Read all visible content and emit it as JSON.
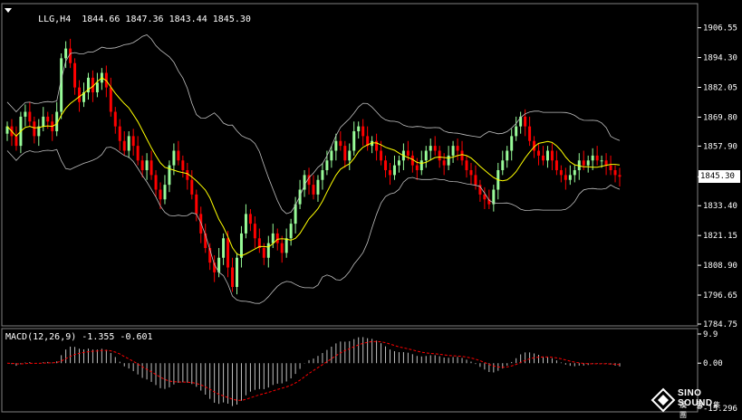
{
  "header": {
    "symbol": "LLG,H4",
    "ohlc": "1844.66 1847.36 1843.44 1845.30",
    "macd_title": "MACD(12,26,9) -1.355 -0.601"
  },
  "price_tag": "1845.30",
  "logo": {
    "name": "SINO SOUND",
    "chinese": "漢 聲 集 團",
    "icon": "diamond-logo-icon"
  },
  "colors": {
    "bull": "#98fb98",
    "bear": "#ff0000",
    "ma": "#ffff00",
    "bands": "#c0c0c0",
    "macd_hist": "#c0c0c0",
    "macd_signal": "#ff0000",
    "grid": "#808080",
    "bg": "#000000"
  },
  "chart_data": [
    {
      "type": "candlestick",
      "title": "LLG,H4",
      "ylim": [
        1784.75,
        1912.0
      ],
      "y_ticks": [
        "1906.55",
        "1894.30",
        "1882.05",
        "1869.80",
        "1857.90",
        "1845.30",
        "1833.40",
        "1821.15",
        "1808.90",
        "1796.65",
        "1784.75"
      ],
      "close": [
        1866,
        1862,
        1858,
        1870,
        1872,
        1868,
        1862,
        1866,
        1870,
        1868,
        1864,
        1872,
        1894,
        1898,
        1892,
        1882,
        1876,
        1880,
        1886,
        1880,
        1884,
        1888,
        1882,
        1872,
        1866,
        1860,
        1856,
        1862,
        1858,
        1852,
        1848,
        1852,
        1846,
        1840,
        1836,
        1842,
        1850,
        1856,
        1852,
        1848,
        1844,
        1838,
        1830,
        1822,
        1816,
        1810,
        1806,
        1812,
        1820,
        1808,
        1800,
        1812,
        1822,
        1830,
        1826,
        1820,
        1816,
        1812,
        1818,
        1822,
        1818,
        1814,
        1820,
        1826,
        1834,
        1840,
        1846,
        1842,
        1838,
        1844,
        1848,
        1852,
        1856,
        1860,
        1858,
        1852,
        1856,
        1864,
        1866,
        1862,
        1858,
        1860,
        1856,
        1852,
        1848,
        1846,
        1850,
        1852,
        1856,
        1854,
        1850,
        1848,
        1852,
        1856,
        1858,
        1856,
        1852,
        1850,
        1854,
        1858,
        1856,
        1852,
        1848,
        1846,
        1842,
        1838,
        1836,
        1834,
        1840,
        1848,
        1852,
        1856,
        1862,
        1866,
        1870,
        1866,
        1860,
        1856,
        1854,
        1852,
        1856,
        1852,
        1848,
        1846,
        1844,
        1846,
        1848,
        1852,
        1850,
        1852,
        1854,
        1852,
        1852,
        1850,
        1848,
        1846,
        1845.3
      ]
    },
    {
      "type": "line",
      "title": "MACD(12,26,9)",
      "series": [
        {
          "name": "MACD",
          "value": -1.355
        },
        {
          "name": "Signal",
          "value": -0.601
        }
      ],
      "ylim": [
        -15.296,
        9.9
      ],
      "y_ticks": [
        "9.9",
        "0.00",
        "-15.296"
      ]
    }
  ]
}
